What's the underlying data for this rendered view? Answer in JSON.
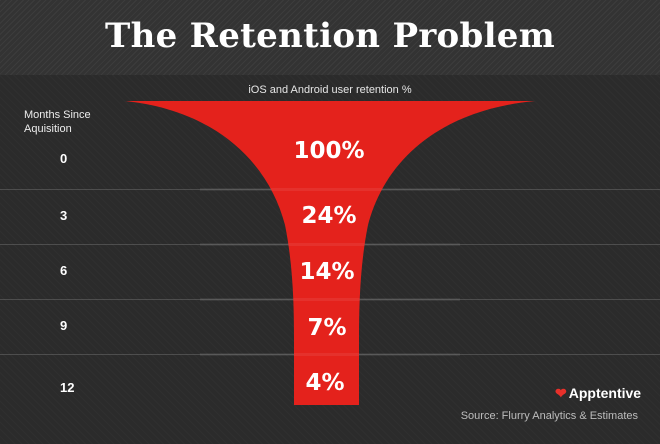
{
  "title": "The Retention Problem",
  "subtitle": "iOS and Android user retention %",
  "axis_header": "Months Since Aquisition",
  "brand": "Apptentive",
  "source": "Source: Flurry Analytics & Estimates",
  "colors": {
    "funnel": "#e4221c",
    "background": "#2a2a2a"
  },
  "chart_data": {
    "type": "bar",
    "orientation": "funnel",
    "title": "The Retention Problem",
    "subtitle": "iOS and Android user retention %",
    "categories_label": "Months Since Aquisition",
    "categories": [
      "0",
      "3",
      "6",
      "9",
      "12"
    ],
    "values": [
      100,
      24,
      14,
      7,
      4
    ],
    "value_labels": [
      "100%",
      "24%",
      "14%",
      "7%",
      "4%"
    ],
    "unit": "%"
  }
}
